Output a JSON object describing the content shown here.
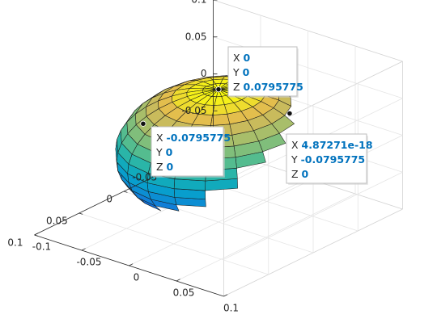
{
  "chart_data": {
    "type": "surface",
    "surface": {
      "shape": "ellipsoid",
      "center": [
        0,
        0,
        0
      ],
      "radius_x": 0.0795775,
      "radius_y": 0.0795775,
      "radius_z": 0.0795775,
      "colormap": "parula"
    },
    "x_ticks": [
      "-0.1",
      "-0.05",
      "0",
      "0.05",
      "0.1"
    ],
    "y_ticks": [
      "-0.1",
      "-0.05",
      "0",
      "0.05",
      "0.1"
    ],
    "z_ticks": [
      "-0.1",
      "-0.05",
      "0",
      "0.05",
      "0.1"
    ],
    "xlim": [
      -0.1,
      0.1
    ],
    "ylim": [
      -0.1,
      0.1
    ],
    "zlim": [
      -0.1,
      0.1
    ],
    "grid": true,
    "datatips": [
      {
        "x": "0",
        "y": "0",
        "z": "0.0795775"
      },
      {
        "x": "-0.0795775",
        "y": "0",
        "z": "0"
      },
      {
        "x": "4.87271e-18",
        "y": "-0.0795775",
        "z": "0"
      }
    ]
  },
  "labels": {
    "x": "X",
    "y": "Y",
    "z": "Z"
  }
}
